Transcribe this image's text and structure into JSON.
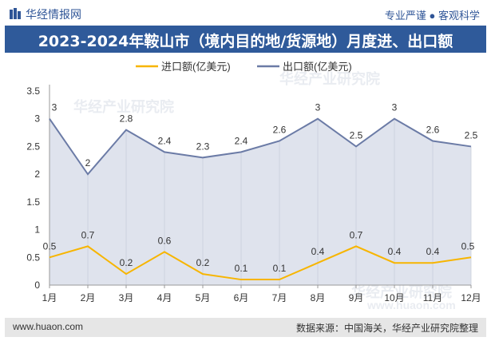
{
  "header": {
    "brand": "华经情报网",
    "slogan": "专业严谨 ● 客观科学",
    "title": "2023-2024年鞍山市（境内目的地/货源地）月度进、出口额"
  },
  "watermarks": [
    "华经产业研究院",
    "华经产业研究院",
    "华经产业研究院",
    "www.huaon.com"
  ],
  "footer": {
    "url": "www.huaon.com",
    "source": "数据来源：中国海关，华经产业研究院整理"
  },
  "colors": {
    "import": "#f7b500",
    "export": "#6b7ba6",
    "export_fill": "#dfe3ed",
    "title_bg": "#2f5a9a"
  },
  "chart_data": {
    "type": "area",
    "categories": [
      "1月",
      "2月",
      "3月",
      "4月",
      "5月",
      "6月",
      "7月",
      "8月",
      "9月",
      "10月",
      "11月",
      "12月"
    ],
    "series": [
      {
        "name": "进口额(亿美元)",
        "values": [
          0.5,
          0.7,
          0.2,
          0.6,
          0.2,
          0.1,
          0.1,
          0.4,
          0.7,
          0.4,
          0.4,
          0.5
        ],
        "labels": [
          "0.5",
          "0.7",
          "0.2",
          "0.6",
          "0.2",
          "0.1",
          "0.1",
          "0.4",
          "0.7",
          "0.4",
          "0.4",
          "0.5"
        ]
      },
      {
        "name": "出口额(亿美元)",
        "values": [
          3.0,
          2.0,
          2.8,
          2.4,
          2.3,
          2.4,
          2.6,
          3.0,
          2.5,
          3.0,
          2.6,
          2.5
        ],
        "labels": [
          "3",
          "2",
          "2.8",
          "2.4",
          "2.3",
          "2.4",
          "2.6",
          "3",
          "2.5",
          "3",
          "2.6",
          "2.5"
        ]
      }
    ],
    "ylim": [
      0,
      3.5
    ],
    "yticks": [
      "0",
      "0.5",
      "1",
      "1.5",
      "2",
      "2.5",
      "3",
      "3.5"
    ],
    "legend_position": "top-center",
    "grid": false
  }
}
